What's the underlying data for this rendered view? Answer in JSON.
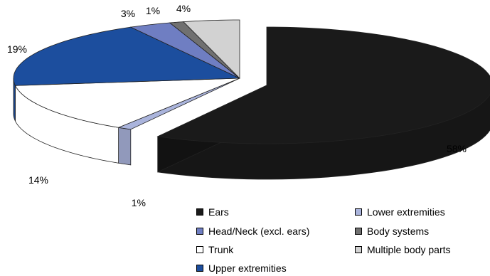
{
  "chart_data": {
    "type": "pie",
    "title": "",
    "categories": [
      "Ears",
      "Lower extremities",
      "Head/Neck (excl. ears)",
      "Body systems",
      "Trunk",
      "Multiple body parts",
      "Upper extremities"
    ],
    "values": [
      58,
      1,
      3,
      1,
      14,
      4,
      19
    ],
    "value_labels": [
      "58%",
      "1%",
      "3%",
      "1%",
      "14%",
      "4%",
      "19%"
    ],
    "colors": [
      "#1a1a1a",
      "#aab4dc",
      "#6f7ec2",
      "#707070",
      "#ffffff",
      "#d2d2d2",
      "#1c4e9e"
    ],
    "order_clockwise_from_top": [
      "Ears",
      "Lower extremities",
      "Trunk",
      "Upper extremities",
      "Head/Neck (excl. ears)",
      "Body systems",
      "Multiple body parts"
    ],
    "exploded": "Ears",
    "style": "3d",
    "legend_position": "bottom-right"
  }
}
